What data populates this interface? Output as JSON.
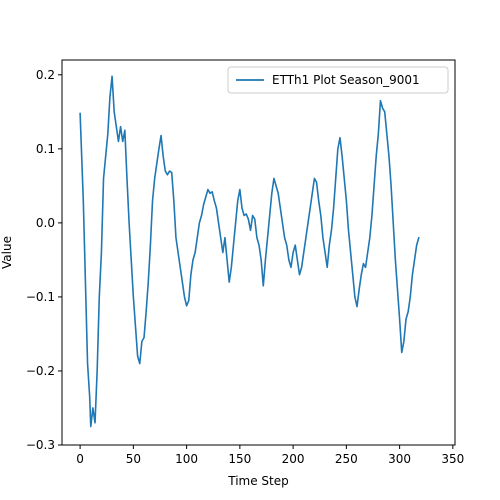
{
  "chart_data": {
    "type": "line",
    "xlabel": "Time Step",
    "ylabel": "Value",
    "xlim": [
      -17,
      352
    ],
    "ylim": [
      -0.3,
      0.22
    ],
    "x_ticks": [
      0,
      50,
      100,
      150,
      200,
      250,
      300,
      350
    ],
    "y_ticks": [
      -0.3,
      -0.2,
      -0.1,
      0.0,
      0.1,
      0.2
    ],
    "x_tick_labels": [
      "0",
      "50",
      "100",
      "150",
      "200",
      "250",
      "300",
      "350"
    ],
    "y_tick_labels": [
      "−0.3",
      "−0.2",
      "−0.1",
      "0.0",
      "0.1",
      "0.2"
    ],
    "grid": false,
    "legend_position": "top-right",
    "series": [
      {
        "name": "ETTh1 Plot Season_9001",
        "color": "#1f77b4",
        "points": [
          [
            0,
            0.148
          ],
          [
            3,
            0.03
          ],
          [
            5,
            -0.08
          ],
          [
            7,
            -0.19
          ],
          [
            9,
            -0.235
          ],
          [
            10,
            -0.275
          ],
          [
            12,
            -0.25
          ],
          [
            14,
            -0.27
          ],
          [
            16,
            -0.2
          ],
          [
            18,
            -0.1
          ],
          [
            20,
            -0.04
          ],
          [
            22,
            0.06
          ],
          [
            24,
            0.09
          ],
          [
            26,
            0.12
          ],
          [
            28,
            0.17
          ],
          [
            30,
            0.198
          ],
          [
            32,
            0.15
          ],
          [
            34,
            0.13
          ],
          [
            36,
            0.11
          ],
          [
            38,
            0.13
          ],
          [
            40,
            0.11
          ],
          [
            42,
            0.125
          ],
          [
            44,
            0.06
          ],
          [
            46,
            0.0
          ],
          [
            48,
            -0.05
          ],
          [
            50,
            -0.1
          ],
          [
            52,
            -0.14
          ],
          [
            54,
            -0.18
          ],
          [
            56,
            -0.19
          ],
          [
            58,
            -0.16
          ],
          [
            60,
            -0.155
          ],
          [
            62,
            -0.12
          ],
          [
            64,
            -0.08
          ],
          [
            66,
            -0.03
          ],
          [
            68,
            0.03
          ],
          [
            70,
            0.06
          ],
          [
            72,
            0.08
          ],
          [
            74,
            0.1
          ],
          [
            76,
            0.118
          ],
          [
            78,
            0.09
          ],
          [
            80,
            0.07
          ],
          [
            82,
            0.065
          ],
          [
            84,
            0.07
          ],
          [
            86,
            0.068
          ],
          [
            88,
            0.03
          ],
          [
            90,
            -0.02
          ],
          [
            92,
            -0.04
          ],
          [
            94,
            -0.06
          ],
          [
            96,
            -0.08
          ],
          [
            98,
            -0.1
          ],
          [
            100,
            -0.112
          ],
          [
            102,
            -0.105
          ],
          [
            104,
            -0.07
          ],
          [
            106,
            -0.05
          ],
          [
            108,
            -0.04
          ],
          [
            110,
            -0.02
          ],
          [
            112,
            0.0
          ],
          [
            114,
            0.01
          ],
          [
            116,
            0.025
          ],
          [
            118,
            0.035
          ],
          [
            120,
            0.045
          ],
          [
            122,
            0.04
          ],
          [
            124,
            0.042
          ],
          [
            126,
            0.03
          ],
          [
            128,
            0.02
          ],
          [
            130,
            0.0
          ],
          [
            132,
            -0.02
          ],
          [
            134,
            -0.04
          ],
          [
            136,
            -0.02
          ],
          [
            138,
            -0.05
          ],
          [
            140,
            -0.08
          ],
          [
            142,
            -0.06
          ],
          [
            144,
            -0.03
          ],
          [
            146,
            0.0
          ],
          [
            148,
            0.03
          ],
          [
            150,
            0.045
          ],
          [
            152,
            0.02
          ],
          [
            154,
            0.01
          ],
          [
            156,
            0.012
          ],
          [
            158,
            0.005
          ],
          [
            160,
            -0.01
          ],
          [
            162,
            0.01
          ],
          [
            164,
            0.005
          ],
          [
            166,
            -0.02
          ],
          [
            168,
            -0.03
          ],
          [
            170,
            -0.05
          ],
          [
            172,
            -0.085
          ],
          [
            174,
            -0.05
          ],
          [
            176,
            -0.02
          ],
          [
            178,
            0.01
          ],
          [
            180,
            0.04
          ],
          [
            182,
            0.06
          ],
          [
            184,
            0.05
          ],
          [
            186,
            0.04
          ],
          [
            188,
            0.02
          ],
          [
            190,
            0.0
          ],
          [
            192,
            -0.02
          ],
          [
            194,
            -0.03
          ],
          [
            196,
            -0.05
          ],
          [
            198,
            -0.06
          ],
          [
            200,
            -0.04
          ],
          [
            202,
            -0.03
          ],
          [
            204,
            -0.05
          ],
          [
            206,
            -0.07
          ],
          [
            208,
            -0.06
          ],
          [
            210,
            -0.04
          ],
          [
            212,
            -0.02
          ],
          [
            214,
            0.0
          ],
          [
            216,
            0.02
          ],
          [
            218,
            0.04
          ],
          [
            220,
            0.06
          ],
          [
            222,
            0.055
          ],
          [
            224,
            0.03
          ],
          [
            226,
            0.01
          ],
          [
            228,
            -0.02
          ],
          [
            230,
            -0.04
          ],
          [
            232,
            -0.06
          ],
          [
            234,
            -0.03
          ],
          [
            236,
            -0.01
          ],
          [
            238,
            0.02
          ],
          [
            240,
            0.06
          ],
          [
            242,
            0.1
          ],
          [
            244,
            0.115
          ],
          [
            246,
            0.09
          ],
          [
            248,
            0.06
          ],
          [
            250,
            0.03
          ],
          [
            252,
            -0.01
          ],
          [
            254,
            -0.04
          ],
          [
            256,
            -0.07
          ],
          [
            258,
            -0.1
          ],
          [
            260,
            -0.113
          ],
          [
            262,
            -0.09
          ],
          [
            264,
            -0.07
          ],
          [
            266,
            -0.055
          ],
          [
            268,
            -0.06
          ],
          [
            270,
            -0.04
          ],
          [
            272,
            -0.02
          ],
          [
            274,
            0.01
          ],
          [
            276,
            0.05
          ],
          [
            278,
            0.09
          ],
          [
            280,
            0.12
          ],
          [
            282,
            0.165
          ],
          [
            284,
            0.155
          ],
          [
            286,
            0.15
          ],
          [
            288,
            0.12
          ],
          [
            290,
            0.09
          ],
          [
            292,
            0.05
          ],
          [
            294,
            0.0
          ],
          [
            296,
            -0.05
          ],
          [
            298,
            -0.09
          ],
          [
            300,
            -0.13
          ],
          [
            302,
            -0.175
          ],
          [
            304,
            -0.16
          ],
          [
            306,
            -0.13
          ],
          [
            308,
            -0.12
          ],
          [
            310,
            -0.1
          ],
          [
            312,
            -0.07
          ],
          [
            314,
            -0.05
          ],
          [
            316,
            -0.03
          ],
          [
            318,
            -0.02
          ]
        ]
      }
    ]
  }
}
